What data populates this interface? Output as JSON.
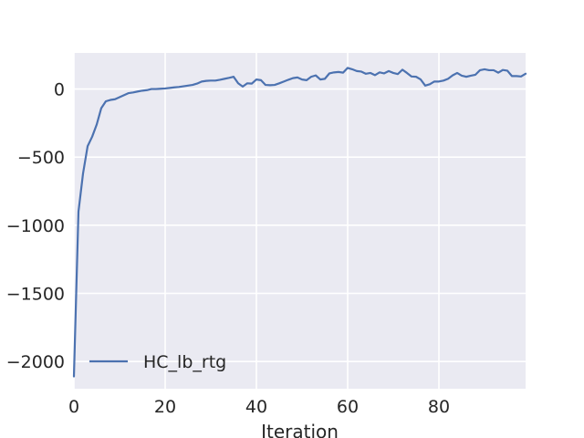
{
  "chart_data": {
    "type": "line",
    "title": "",
    "xlabel": "Iteration",
    "ylabel": "",
    "xlim": [
      0,
      99
    ],
    "ylim": [
      -2200,
      265
    ],
    "grid": true,
    "legend_position": "lower-left",
    "x_ticks": [
      0,
      20,
      40,
      60,
      80
    ],
    "x_tick_labels": [
      "0",
      "20",
      "40",
      "60",
      "80"
    ],
    "y_ticks": [
      0,
      -500,
      -1000,
      -1500,
      -2000
    ],
    "y_tick_labels": [
      "0",
      "−500",
      "−1000",
      "−1500",
      "−2000"
    ],
    "colors": {
      "background": "#eaeaf2",
      "grid": "#ffffff",
      "series": "#4c72b0"
    },
    "series": [
      {
        "name": "HC_lb_rtg",
        "x": [
          0,
          1,
          2,
          3,
          4,
          5,
          6,
          7,
          8,
          9,
          10,
          11,
          12,
          13,
          14,
          15,
          16,
          17,
          18,
          19,
          20,
          21,
          22,
          23,
          24,
          25,
          26,
          27,
          28,
          29,
          30,
          31,
          32,
          33,
          34,
          35,
          36,
          37,
          38,
          39,
          40,
          41,
          42,
          43,
          44,
          45,
          46,
          47,
          48,
          49,
          50,
          51,
          52,
          53,
          54,
          55,
          56,
          57,
          58,
          59,
          60,
          61,
          62,
          63,
          64,
          65,
          66,
          67,
          68,
          69,
          70,
          71,
          72,
          73,
          74,
          75,
          76,
          77,
          78,
          79,
          80,
          81,
          82,
          83,
          84,
          85,
          86,
          87,
          88,
          89,
          90,
          91,
          92,
          93,
          94,
          95,
          96,
          97,
          98,
          99
        ],
        "values": [
          -2110,
          -900,
          -620,
          -420,
          -350,
          -260,
          -140,
          -90,
          -80,
          -75,
          -60,
          -45,
          -30,
          -25,
          -18,
          -12,
          -8,
          0,
          0,
          2,
          4,
          8,
          12,
          15,
          20,
          25,
          30,
          40,
          55,
          60,
          62,
          62,
          68,
          75,
          82,
          90,
          42,
          18,
          42,
          40,
          70,
          65,
          30,
          28,
          30,
          42,
          55,
          68,
          80,
          85,
          70,
          65,
          90,
          100,
          70,
          75,
          115,
          122,
          125,
          120,
          155,
          145,
          132,
          128,
          112,
          118,
          102,
          122,
          115,
          132,
          118,
          110,
          142,
          118,
          92,
          90,
          70,
          25,
          35,
          55,
          55,
          62,
          75,
          100,
          118,
          98,
          90,
          98,
          105,
          138,
          145,
          138,
          138,
          120,
          140,
          135,
          95,
          95,
          92,
          112
        ]
      }
    ]
  }
}
